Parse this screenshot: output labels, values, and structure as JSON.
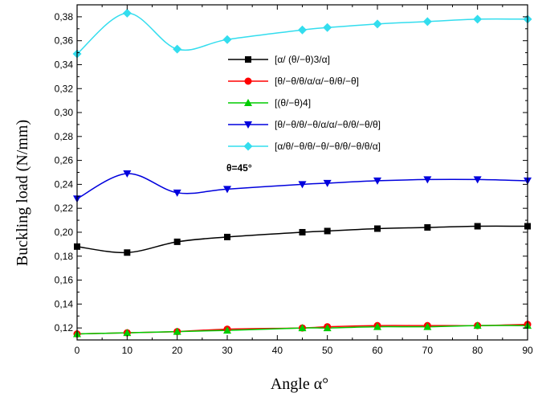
{
  "chart_data": {
    "type": "line",
    "xlabel": "Angle α°",
    "ylabel": "Buckling load (N/mm)",
    "xlim": [
      0,
      90
    ],
    "ylim": [
      0.11,
      0.39
    ],
    "x_ticks": [
      "0",
      "10",
      "20",
      "30",
      "40",
      "50",
      "60",
      "70",
      "80",
      "90"
    ],
    "y_ticks": [
      "0,12",
      "0,14",
      "0,16",
      "0,18",
      "0,20",
      "0,22",
      "0,24",
      "0,26",
      "0,28",
      "0,30",
      "0,32",
      "0,34",
      "0,36",
      "0,38"
    ],
    "grid": false,
    "legend_position": "center-right",
    "annotation": "θ=45°",
    "series": [
      {
        "name": "[α/ (θ/−θ)3/α]",
        "color": "#000000",
        "marker": "square",
        "x": [
          0,
          10,
          20,
          30,
          45,
          50,
          60,
          70,
          80,
          90
        ],
        "y": [
          0.188,
          0.183,
          0.192,
          0.196,
          0.2,
          0.201,
          0.203,
          0.204,
          0.205,
          0.205
        ]
      },
      {
        "name": "[θ/−θ/θ/α/α/−θ/θ/−θ]",
        "color": "#ff0000",
        "marker": "circle",
        "x": [
          0,
          10,
          20,
          30,
          45,
          50,
          60,
          70,
          80,
          90
        ],
        "y": [
          0.115,
          0.116,
          0.117,
          0.119,
          0.12,
          0.121,
          0.122,
          0.122,
          0.122,
          0.123
        ]
      },
      {
        "name": "[(θ/−θ)4]",
        "color": "#00cc00",
        "marker": "triangle-up",
        "x": [
          0,
          10,
          20,
          30,
          45,
          50,
          60,
          70,
          80,
          90
        ],
        "y": [
          0.115,
          0.116,
          0.117,
          0.118,
          0.12,
          0.12,
          0.121,
          0.121,
          0.122,
          0.122
        ]
      },
      {
        "name": "[θ/−θ/θ/−θ/α/α/−θ/θ/−θ/θ]",
        "color": "#0000dd",
        "marker": "triangle-down",
        "x": [
          0,
          10,
          20,
          30,
          45,
          50,
          60,
          70,
          80,
          90
        ],
        "y": [
          0.228,
          0.249,
          0.233,
          0.236,
          0.24,
          0.241,
          0.243,
          0.244,
          0.244,
          0.243
        ]
      },
      {
        "name": "[α/θ/−θ/θ/−θ/−θ/θ/−θ/θ/α]",
        "color": "#33ddee",
        "marker": "diamond",
        "x": [
          0,
          10,
          20,
          30,
          45,
          50,
          60,
          70,
          80,
          90
        ],
        "y": [
          0.349,
          0.383,
          0.353,
          0.361,
          0.369,
          0.371,
          0.374,
          0.376,
          0.378,
          0.378
        ]
      }
    ]
  }
}
